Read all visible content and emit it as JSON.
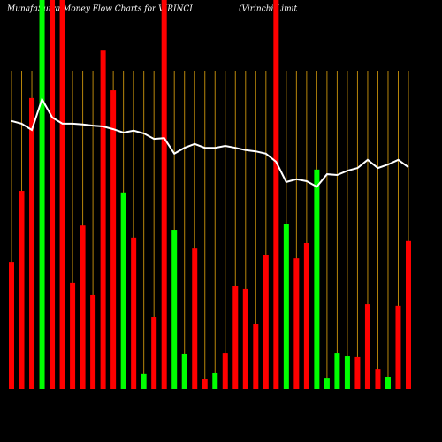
{
  "chart_data": {
    "type": "bar",
    "title": "MunafaSutra Money Flow Charts for VIRINCI",
    "subtitle": "(Virinchi Limit",
    "categories": [
      null,
      null,
      null,
      null,
      null,
      null,
      null,
      null,
      null,
      null,
      null,
      null,
      null,
      null,
      null,
      null,
      null,
      null,
      null,
      null,
      null,
      null,
      null,
      null,
      null,
      null,
      null,
      null,
      null,
      null,
      null,
      null,
      null,
      null,
      null,
      null,
      null,
      null,
      null,
      null
    ],
    "bars": {
      "values": [
        32.7,
        50.9,
        74.8,
        100,
        100,
        100,
        27.3,
        42,
        24.1,
        87,
        76.8,
        50.5,
        38.9,
        3.9,
        18.4,
        100,
        40.9,
        9.1,
        36.1,
        2.5,
        4.1,
        9.3,
        26.4,
        25.7,
        16.6,
        34.5,
        100,
        42.5,
        33.6,
        37.5,
        56.4,
        2.7,
        9.3,
        8.4,
        8.2,
        21.8,
        5.2,
        3,
        21.4,
        38
      ],
      "colors": [
        "#ff0000",
        "#ff0000",
        "#ff0000",
        "#00ff00",
        "#ff0000",
        "#ff0000",
        "#ff0000",
        "#ff0000",
        "#ff0000",
        "#ff0000",
        "#ff0000",
        "#00ff00",
        "#ff0000",
        "#00ff00",
        "#ff0000",
        "#ff0000",
        "#00ff00",
        "#00ff00",
        "#ff0000",
        "#ff0000",
        "#00ff00",
        "#ff0000",
        "#ff0000",
        "#ff0000",
        "#ff0000",
        "#ff0000",
        "#ff0000",
        "#00ff00",
        "#ff0000",
        "#ff0000",
        "#00ff00",
        "#00ff00",
        "#00ff00",
        "#00ff00",
        "#ff0000",
        "#ff0000",
        "#ff0000",
        "#00ff00",
        "#ff0000",
        "#ff0000"
      ]
    },
    "line": {
      "color": "#ffffff",
      "values": [
        68.9,
        68.2,
        66.6,
        74.5,
        69.8,
        68.2,
        68.2,
        68.0,
        67.7,
        67.5,
        66.8,
        65.9,
        66.4,
        65.7,
        64.3,
        64.5,
        60.5,
        62.0,
        63.0,
        62.0,
        62.0,
        62.5,
        62.0,
        61.4,
        61.1,
        60.5,
        58.4,
        53.2,
        53.9,
        53.4,
        52.0,
        55.2,
        55.0,
        56.1,
        56.8,
        58.9,
        56.8,
        57.7,
        58.9,
        57.0
      ]
    },
    "ylim": [
      0,
      100
    ],
    "grid": true,
    "grid_color": "#b8860b"
  }
}
